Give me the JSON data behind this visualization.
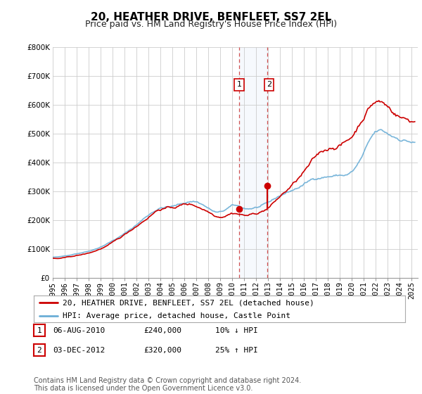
{
  "title": "20, HEATHER DRIVE, BENFLEET, SS7 2EL",
  "subtitle": "Price paid vs. HM Land Registry's House Price Index (HPI)",
  "ylabel_ticks": [
    "£0",
    "£100K",
    "£200K",
    "£300K",
    "£400K",
    "£500K",
    "£600K",
    "£700K",
    "£800K"
  ],
  "ylim": [
    0,
    800000
  ],
  "xlim_start": 1995.0,
  "xlim_end": 2025.5,
  "hpi_color": "#6baed6",
  "price_color": "#cc0000",
  "sale1_date": 2010.59,
  "sale1_price": 240000,
  "sale1_label": "1",
  "sale2_date": 2012.92,
  "sale2_price": 320000,
  "sale2_label": "2",
  "highlight_x1": 2010.59,
  "highlight_x2": 2012.92,
  "background_color": "#ffffff",
  "plot_bg_color": "#ffffff",
  "grid_color": "#cccccc",
  "legend_line1": "20, HEATHER DRIVE, BENFLEET, SS7 2EL (detached house)",
  "legend_line2": "HPI: Average price, detached house, Castle Point",
  "table_row1": [
    "1",
    "06-AUG-2010",
    "£240,000",
    "10% ↓ HPI"
  ],
  "table_row2": [
    "2",
    "03-DEC-2012",
    "£320,000",
    "25% ↑ HPI"
  ],
  "footer": "Contains HM Land Registry data © Crown copyright and database right 2024.\nThis data is licensed under the Open Government Licence v3.0.",
  "title_fontsize": 11,
  "subtitle_fontsize": 9,
  "tick_fontsize": 7.5,
  "legend_fontsize": 8,
  "table_fontsize": 8,
  "footer_fontsize": 7
}
